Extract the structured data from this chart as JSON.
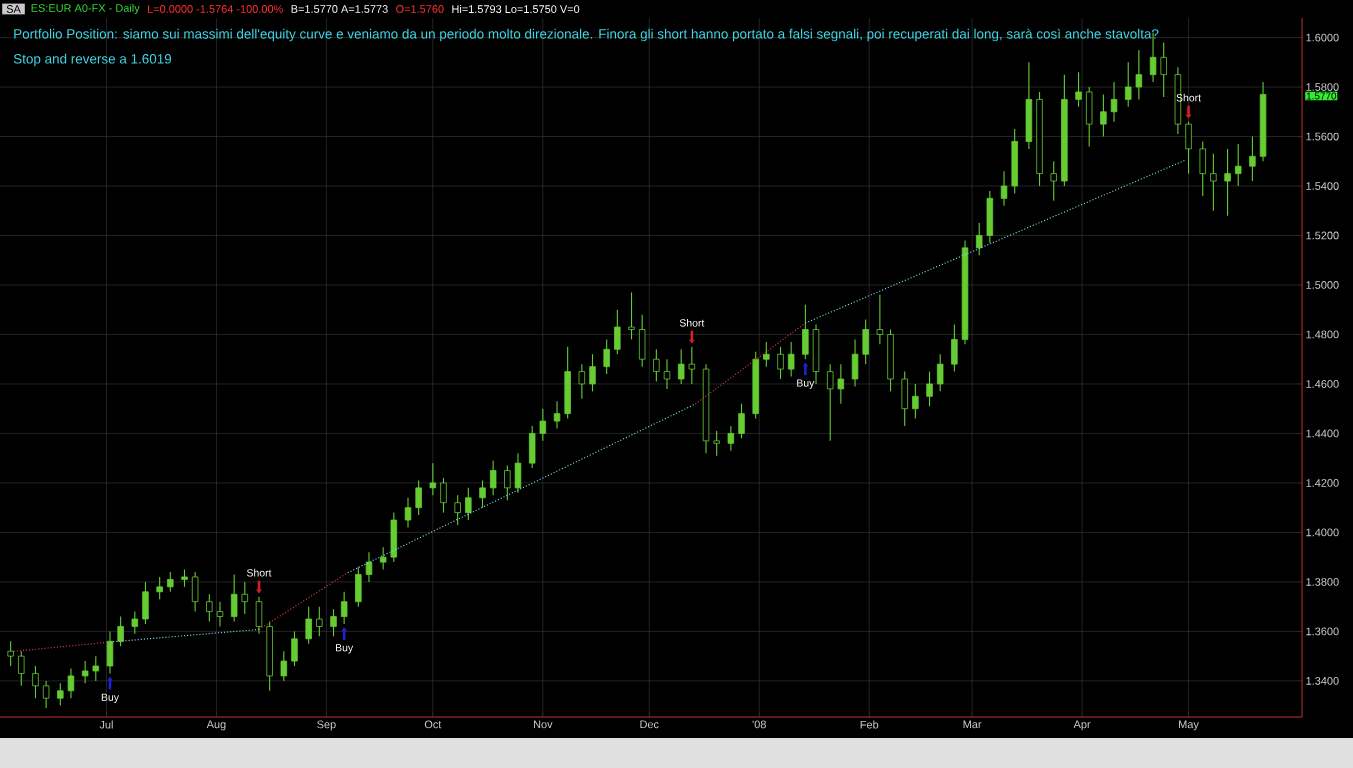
{
  "chart_data": {
    "type": "candlestick",
    "title": "ES:EUR A0-FX - Daily",
    "color": "#66cc33",
    "x": [
      "2007-06-04",
      "2007-06-07",
      "2007-06-11",
      "2007-06-14",
      "2007-06-18",
      "2007-06-21",
      "2007-06-25",
      "2007-06-28",
      "2007-07-02",
      "2007-07-05",
      "2007-07-09",
      "2007-07-12",
      "2007-07-16",
      "2007-07-19",
      "2007-07-23",
      "2007-07-26",
      "2007-07-30",
      "2007-08-02",
      "2007-08-06",
      "2007-08-09",
      "2007-08-13",
      "2007-08-16",
      "2007-08-20",
      "2007-08-23",
      "2007-08-27",
      "2007-08-30",
      "2007-09-03",
      "2007-09-06",
      "2007-09-10",
      "2007-09-13",
      "2007-09-17",
      "2007-09-20",
      "2007-09-24",
      "2007-09-27",
      "2007-10-01",
      "2007-10-04",
      "2007-10-08",
      "2007-10-11",
      "2007-10-15",
      "2007-10-18",
      "2007-10-22",
      "2007-10-25",
      "2007-10-29",
      "2007-11-01",
      "2007-11-05",
      "2007-11-08",
      "2007-11-12",
      "2007-11-15",
      "2007-11-19",
      "2007-11-22",
      "2007-11-26",
      "2007-11-29",
      "2007-12-03",
      "2007-12-06",
      "2007-12-10",
      "2007-12-13",
      "2007-12-17",
      "2007-12-20",
      "2007-12-24",
      "2007-12-27",
      "2007-12-31",
      "2008-01-03",
      "2008-01-07",
      "2008-01-10",
      "2008-01-14",
      "2008-01-17",
      "2008-01-21",
      "2008-01-24",
      "2008-01-28",
      "2008-01-31",
      "2008-02-04",
      "2008-02-07",
      "2008-02-11",
      "2008-02-14",
      "2008-02-18",
      "2008-02-21",
      "2008-02-25",
      "2008-02-28",
      "2008-03-03",
      "2008-03-06",
      "2008-03-10",
      "2008-03-13",
      "2008-03-17",
      "2008-03-20",
      "2008-03-24",
      "2008-03-27",
      "2008-03-31",
      "2008-04-03",
      "2008-04-07",
      "2008-04-10",
      "2008-04-14",
      "2008-04-17",
      "2008-04-21",
      "2008-04-24",
      "2008-04-28",
      "2008-05-01",
      "2008-05-05",
      "2008-05-08",
      "2008-05-12",
      "2008-05-15",
      "2008-05-19",
      "2008-05-22"
    ],
    "ohlc": [
      [
        1.352,
        1.356,
        1.346,
        1.35
      ],
      [
        1.35,
        1.352,
        1.338,
        1.343
      ],
      [
        1.343,
        1.346,
        1.333,
        1.338
      ],
      [
        1.338,
        1.34,
        1.329,
        1.333
      ],
      [
        1.333,
        1.339,
        1.33,
        1.336
      ],
      [
        1.336,
        1.345,
        1.333,
        1.342
      ],
      [
        1.342,
        1.348,
        1.339,
        1.344
      ],
      [
        1.344,
        1.35,
        1.34,
        1.346
      ],
      [
        1.346,
        1.36,
        1.343,
        1.356
      ],
      [
        1.356,
        1.366,
        1.354,
        1.362
      ],
      [
        1.362,
        1.368,
        1.359,
        1.365
      ],
      [
        1.365,
        1.38,
        1.363,
        1.376
      ],
      [
        1.376,
        1.382,
        1.373,
        1.378
      ],
      [
        1.378,
        1.384,
        1.376,
        1.381
      ],
      [
        1.381,
        1.385,
        1.378,
        1.382
      ],
      [
        1.382,
        1.384,
        1.368,
        1.372
      ],
      [
        1.372,
        1.375,
        1.364,
        1.368
      ],
      [
        1.368,
        1.372,
        1.362,
        1.366
      ],
      [
        1.366,
        1.383,
        1.364,
        1.375
      ],
      [
        1.375,
        1.38,
        1.367,
        1.372
      ],
      [
        1.372,
        1.374,
        1.359,
        1.362
      ],
      [
        1.362,
        1.364,
        1.336,
        1.342
      ],
      [
        1.342,
        1.352,
        1.34,
        1.348
      ],
      [
        1.348,
        1.36,
        1.346,
        1.357
      ],
      [
        1.357,
        1.37,
        1.355,
        1.365
      ],
      [
        1.365,
        1.37,
        1.358,
        1.362
      ],
      [
        1.362,
        1.369,
        1.358,
        1.366
      ],
      [
        1.366,
        1.376,
        1.363,
        1.372
      ],
      [
        1.372,
        1.386,
        1.37,
        1.383
      ],
      [
        1.383,
        1.392,
        1.38,
        1.388
      ],
      [
        1.388,
        1.394,
        1.385,
        1.39
      ],
      [
        1.39,
        1.408,
        1.388,
        1.405
      ],
      [
        1.405,
        1.414,
        1.402,
        1.41
      ],
      [
        1.41,
        1.421,
        1.407,
        1.418
      ],
      [
        1.418,
        1.428,
        1.415,
        1.42
      ],
      [
        1.42,
        1.422,
        1.408,
        1.412
      ],
      [
        1.412,
        1.415,
        1.403,
        1.408
      ],
      [
        1.408,
        1.418,
        1.405,
        1.414
      ],
      [
        1.414,
        1.421,
        1.41,
        1.418
      ],
      [
        1.418,
        1.429,
        1.415,
        1.425
      ],
      [
        1.425,
        1.427,
        1.413,
        1.418
      ],
      [
        1.418,
        1.432,
        1.416,
        1.428
      ],
      [
        1.428,
        1.443,
        1.426,
        1.44
      ],
      [
        1.44,
        1.45,
        1.437,
        1.445
      ],
      [
        1.445,
        1.453,
        1.442,
        1.448
      ],
      [
        1.448,
        1.475,
        1.446,
        1.465
      ],
      [
        1.465,
        1.468,
        1.454,
        1.46
      ],
      [
        1.46,
        1.472,
        1.457,
        1.467
      ],
      [
        1.467,
        1.478,
        1.464,
        1.474
      ],
      [
        1.474,
        1.49,
        1.472,
        1.483
      ],
      [
        1.483,
        1.497,
        1.478,
        1.482
      ],
      [
        1.482,
        1.488,
        1.467,
        1.47
      ],
      [
        1.47,
        1.474,
        1.461,
        1.465
      ],
      [
        1.465,
        1.47,
        1.458,
        1.462
      ],
      [
        1.462,
        1.474,
        1.46,
        1.468
      ],
      [
        1.468,
        1.475,
        1.46,
        1.466
      ],
      [
        1.466,
        1.468,
        1.432,
        1.437
      ],
      [
        1.437,
        1.441,
        1.431,
        1.436
      ],
      [
        1.436,
        1.443,
        1.433,
        1.44
      ],
      [
        1.44,
        1.452,
        1.438,
        1.448
      ],
      [
        1.448,
        1.473,
        1.446,
        1.47
      ],
      [
        1.47,
        1.477,
        1.467,
        1.472
      ],
      [
        1.472,
        1.475,
        1.462,
        1.466
      ],
      [
        1.466,
        1.477,
        1.463,
        1.472
      ],
      [
        1.472,
        1.492,
        1.47,
        1.482
      ],
      [
        1.482,
        1.484,
        1.46,
        1.465
      ],
      [
        1.465,
        1.468,
        1.437,
        1.458
      ],
      [
        1.458,
        1.468,
        1.452,
        1.462
      ],
      [
        1.462,
        1.478,
        1.459,
        1.472
      ],
      [
        1.472,
        1.486,
        1.468,
        1.482
      ],
      [
        1.482,
        1.496,
        1.476,
        1.48
      ],
      [
        1.48,
        1.482,
        1.457,
        1.462
      ],
      [
        1.462,
        1.465,
        1.443,
        1.45
      ],
      [
        1.45,
        1.46,
        1.446,
        1.455
      ],
      [
        1.455,
        1.465,
        1.451,
        1.46
      ],
      [
        1.46,
        1.472,
        1.457,
        1.468
      ],
      [
        1.468,
        1.484,
        1.465,
        1.478
      ],
      [
        1.478,
        1.518,
        1.476,
        1.515
      ],
      [
        1.515,
        1.525,
        1.512,
        1.52
      ],
      [
        1.52,
        1.538,
        1.517,
        1.535
      ],
      [
        1.535,
        1.546,
        1.532,
        1.54
      ],
      [
        1.54,
        1.563,
        1.537,
        1.558
      ],
      [
        1.558,
        1.59,
        1.555,
        1.575
      ],
      [
        1.575,
        1.578,
        1.54,
        1.545
      ],
      [
        1.545,
        1.55,
        1.534,
        1.542
      ],
      [
        1.542,
        1.585,
        1.54,
        1.575
      ],
      [
        1.575,
        1.586,
        1.572,
        1.578
      ],
      [
        1.578,
        1.58,
        1.556,
        1.565
      ],
      [
        1.565,
        1.577,
        1.56,
        1.57
      ],
      [
        1.57,
        1.582,
        1.566,
        1.575
      ],
      [
        1.575,
        1.59,
        1.572,
        1.58
      ],
      [
        1.58,
        1.595,
        1.575,
        1.585
      ],
      [
        1.585,
        1.602,
        1.582,
        1.592
      ],
      [
        1.592,
        1.598,
        1.576,
        1.585
      ],
      [
        1.585,
        1.588,
        1.561,
        1.565
      ],
      [
        1.565,
        1.566,
        1.545,
        1.555
      ],
      [
        1.555,
        1.558,
        1.536,
        1.545
      ],
      [
        1.545,
        1.553,
        1.53,
        1.542
      ],
      [
        1.542,
        1.555,
        1.528,
        1.545
      ],
      [
        1.545,
        1.557,
        1.54,
        1.548
      ],
      [
        1.548,
        1.56,
        1.542,
        1.552
      ],
      [
        1.552,
        1.582,
        1.55,
        1.577
      ]
    ],
    "series": [
      {
        "type": "line",
        "color": "#e04040",
        "line_style": "dotted",
        "x": [
          "2007-06-04",
          "2007-07-02"
        ],
        "values": [
          1.3518,
          1.3557
        ]
      },
      {
        "type": "line",
        "color": "#80e0f0",
        "line_style": "dotted",
        "x": [
          "2007-07-02",
          "2007-08-13"
        ],
        "values": [
          1.3557,
          1.3608
        ]
      },
      {
        "type": "line",
        "color": "#e04040",
        "line_style": "dotted",
        "x": [
          "2007-08-13",
          "2007-09-07"
        ],
        "values": [
          1.3608,
          1.3837
        ]
      },
      {
        "type": "line",
        "color": "#80e0f0",
        "line_style": "dotted",
        "x": [
          "2007-09-07",
          "2007-12-14"
        ],
        "values": [
          1.3837,
          1.4519
        ]
      },
      {
        "type": "line",
        "color": "#e04040",
        "line_style": "dotted",
        "x": [
          "2007-12-14",
          "2008-01-14"
        ],
        "values": [
          1.4519,
          1.4846
        ]
      },
      {
        "type": "line",
        "color": "#80e0f0",
        "line_style": "dotted",
        "x": [
          "2008-01-14",
          "2008-04-30"
        ],
        "values": [
          1.4846,
          1.5504
        ]
      }
    ],
    "annotations": [
      "SA",
      "L=0.0000  -1.5764  -100.00%",
      "B=1.5770  A=1.5773",
      "O=1.5760",
      "Hi=1.5793  Lo=1.5750  V=0",
      "Portfolio Position: siamo sui massimi dell'equity curve e veniamo da un periodo molto direzionale. Finora gli short hanno portato a falsi segnali, poi recuperati dai long, sarà così anche stavolta?",
      "Stop  and reverse a 1.6019",
      "1.5770",
      {
        "text": "Buy",
        "x": "2007-07-02",
        "y": 1.343
      },
      {
        "text": "Short",
        "x": "2007-08-13",
        "y": 1.374
      },
      {
        "text": "Buy",
        "x": "2007-09-06",
        "y": 1.363
      },
      {
        "text": "Short",
        "x": "2007-12-13",
        "y": 1.475
      },
      {
        "text": "Buy",
        "x": "2008-01-14",
        "y": 1.47
      },
      {
        "text": "Short",
        "x": "2008-05-01",
        "y": 1.566
      }
    ],
    "xlim": [
      "2007-06-01",
      "2008-06-02"
    ],
    "xticks": [
      {
        "value": "2007-07-01",
        "label": "Jul"
      },
      {
        "value": "2007-08-01",
        "label": "Aug"
      },
      {
        "value": "2007-09-01",
        "label": "Sep"
      },
      {
        "value": "2007-10-01",
        "label": "Oct"
      },
      {
        "value": "2007-11-01",
        "label": "Nov"
      },
      {
        "value": "2007-12-01",
        "label": "Dec"
      },
      {
        "value": "2008-01-01",
        "label": "'08"
      },
      {
        "value": "2008-02-01",
        "label": "Feb"
      },
      {
        "value": "2008-03-01",
        "label": "Mar"
      },
      {
        "value": "2008-04-01",
        "label": "Apr"
      },
      {
        "value": "2008-05-01",
        "label": "May"
      }
    ],
    "ylim": [
      1.3254,
      1.6079
    ],
    "yticks": [
      {
        "value": 1.34,
        "label": "1.3400"
      },
      {
        "value": 1.36,
        "label": "1.3600"
      },
      {
        "value": 1.38,
        "label": "1.3800"
      },
      {
        "value": 1.4,
        "label": "1.4000"
      },
      {
        "value": 1.42,
        "label": "1.4200"
      },
      {
        "value": 1.44,
        "label": "1.4400"
      },
      {
        "value": 1.46,
        "label": "1.4600"
      },
      {
        "value": 1.48,
        "label": "1.4800"
      },
      {
        "value": 1.5,
        "label": "1.5000"
      },
      {
        "value": 1.52,
        "label": "1.5200"
      },
      {
        "value": 1.54,
        "label": "1.5400"
      },
      {
        "value": 1.56,
        "label": "1.5600"
      },
      {
        "value": 1.58,
        "label": "1.5800"
      },
      {
        "value": 1.6,
        "label": "1.6000"
      }
    ],
    "grid": true
  }
}
